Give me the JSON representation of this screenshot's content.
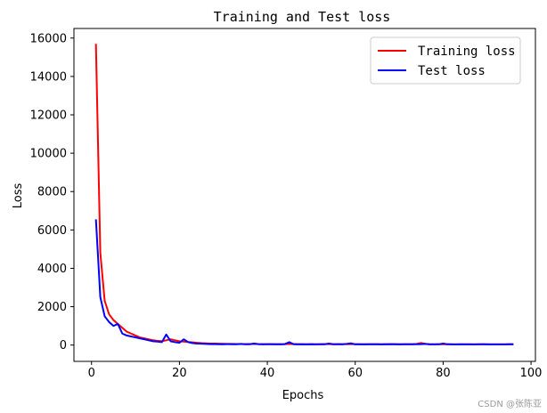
{
  "chart_data": {
    "type": "line",
    "title": "Training and Test loss",
    "xlabel": "Epochs",
    "ylabel": "Loss",
    "xlim": [
      -4,
      101
    ],
    "ylim": [
      -850,
      16500
    ],
    "xticks": [
      0,
      20,
      40,
      60,
      80,
      100
    ],
    "yticks": [
      0,
      2000,
      4000,
      6000,
      8000,
      10000,
      12000,
      14000,
      16000
    ],
    "legend_position": "top-right",
    "grid": false,
    "series": [
      {
        "name": "Training loss",
        "color": "#ff0000",
        "x": [
          1,
          2,
          3,
          4,
          5,
          6,
          7,
          8,
          9,
          10,
          11,
          12,
          13,
          14,
          15,
          16,
          17,
          18,
          19,
          20,
          21,
          22,
          23,
          24,
          25,
          26,
          27,
          28,
          29,
          30,
          31,
          32,
          33,
          34,
          35,
          36,
          37,
          38,
          39,
          40,
          41,
          42,
          43,
          44,
          45,
          46,
          47,
          48,
          49,
          50,
          51,
          52,
          53,
          54,
          55,
          56,
          57,
          58,
          59,
          60,
          61,
          62,
          63,
          64,
          65,
          66,
          67,
          68,
          69,
          70,
          71,
          72,
          73,
          74,
          75,
          76,
          77,
          78,
          79,
          80,
          81,
          82,
          83,
          84,
          85,
          86,
          87,
          88,
          89,
          90,
          91,
          92,
          93,
          94,
          95,
          96
        ],
        "y": [
          15700,
          4800,
          2300,
          1600,
          1300,
          1100,
          900,
          700,
          600,
          500,
          400,
          350,
          300,
          250,
          220,
          200,
          250,
          300,
          250,
          200,
          180,
          160,
          140,
          120,
          100,
          90,
          80,
          75,
          70,
          65,
          60,
          60,
          55,
          55,
          50,
          55,
          60,
          50,
          45,
          50,
          50,
          45,
          45,
          50,
          60,
          55,
          50,
          45,
          45,
          50,
          45,
          45,
          50,
          55,
          45,
          50,
          45,
          50,
          55,
          45,
          45,
          45,
          40,
          40,
          45,
          45,
          40,
          40,
          50,
          45,
          40,
          40,
          45,
          60,
          110,
          60,
          45,
          40,
          40,
          45,
          40,
          40,
          35,
          35,
          40,
          40,
          35,
          35,
          40,
          40,
          35,
          35,
          35,
          35,
          40,
          40
        ]
      },
      {
        "name": "Test loss",
        "color": "#0000ff",
        "x": [
          1,
          2,
          3,
          4,
          5,
          6,
          7,
          8,
          9,
          10,
          11,
          12,
          13,
          14,
          15,
          16,
          17,
          18,
          19,
          20,
          21,
          22,
          23,
          24,
          25,
          26,
          27,
          28,
          29,
          30,
          31,
          32,
          33,
          34,
          35,
          36,
          37,
          38,
          39,
          40,
          41,
          42,
          43,
          44,
          45,
          46,
          47,
          48,
          49,
          50,
          51,
          52,
          53,
          54,
          55,
          56,
          57,
          58,
          59,
          60,
          61,
          62,
          63,
          64,
          65,
          66,
          67,
          68,
          69,
          70,
          71,
          72,
          73,
          74,
          75,
          76,
          77,
          78,
          79,
          80,
          81,
          82,
          83,
          84,
          85,
          86,
          87,
          88,
          89,
          90,
          91,
          92,
          93,
          94,
          95,
          96
        ],
        "y": [
          6550,
          2500,
          1500,
          1200,
          1000,
          1100,
          600,
          500,
          450,
          400,
          350,
          300,
          250,
          200,
          180,
          150,
          550,
          200,
          150,
          120,
          300,
          150,
          100,
          80,
          70,
          60,
          50,
          50,
          45,
          40,
          50,
          45,
          40,
          60,
          40,
          45,
          80,
          50,
          40,
          40,
          45,
          40,
          40,
          50,
          150,
          40,
          35,
          40,
          35,
          40,
          35,
          40,
          40,
          80,
          45,
          40,
          40,
          60,
          90,
          40,
          40,
          35,
          40,
          40,
          45,
          35,
          40,
          50,
          40,
          35,
          40,
          40,
          45,
          40,
          50,
          60,
          35,
          35,
          40,
          80,
          40,
          35,
          35,
          40,
          35,
          35,
          35,
          40,
          45,
          35,
          35,
          35,
          35,
          35,
          40,
          45
        ]
      }
    ]
  },
  "watermark": "CSDN @张陈亚"
}
